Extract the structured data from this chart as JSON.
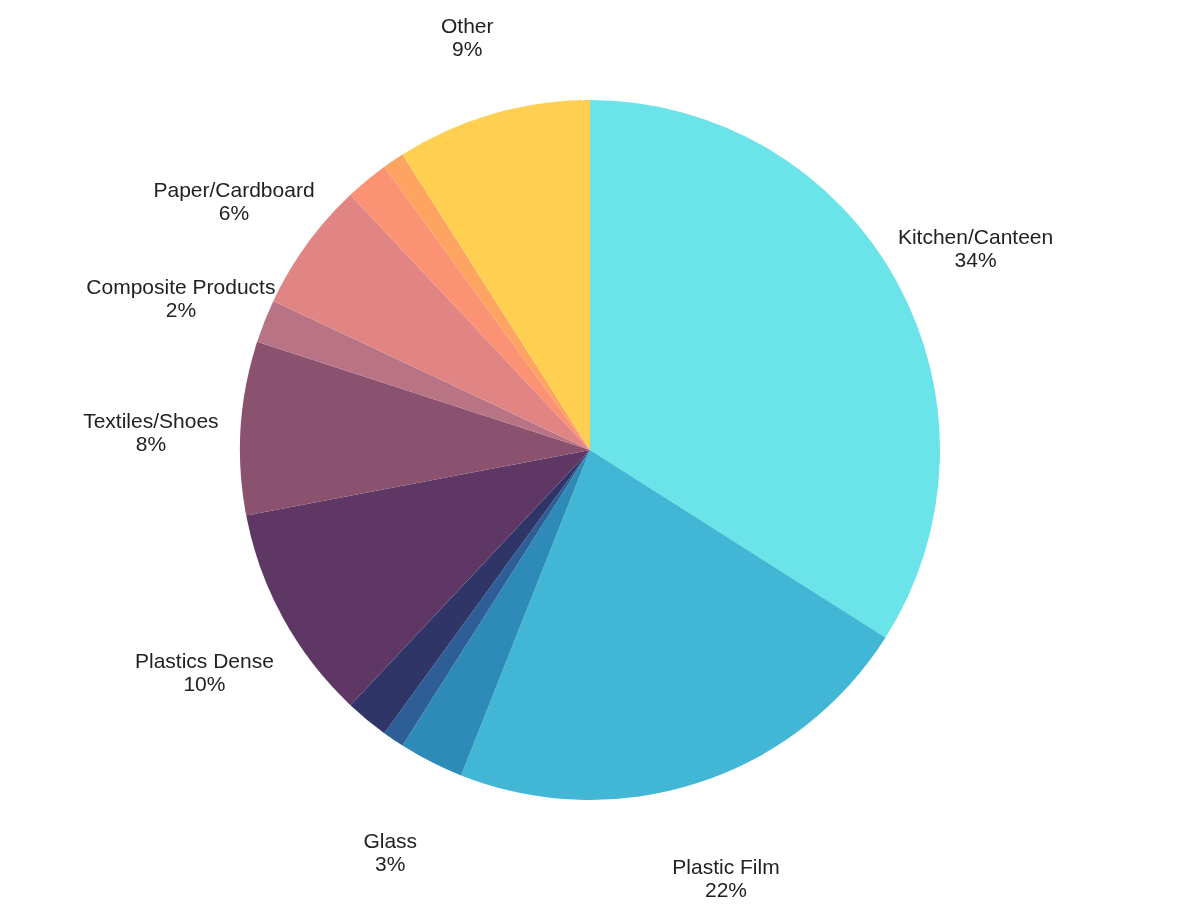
{
  "chart_data": {
    "type": "pie",
    "categories": [
      "Kitchen/Canteen",
      "Plastic Film",
      "Glass",
      null,
      null,
      "Plastics Dense",
      "Textiles/Shoes",
      "Composite Products",
      "Paper/Cardboard",
      null,
      null,
      "Other"
    ],
    "values": [
      34,
      22,
      3,
      1,
      2,
      10,
      8,
      2,
      6,
      2,
      1,
      9
    ],
    "value_labels": [
      "34%",
      "22%",
      "3%",
      null,
      null,
      "10%",
      "8%",
      "2%",
      "6%",
      null,
      null,
      "9%"
    ],
    "colors": [
      "#6ae4e8",
      "#42b6d5",
      "#2e8bb8",
      "#2d5e96",
      "#2f3566",
      "#5e3765",
      "#8a526f",
      "#b87485",
      "#e08484",
      "#fb9274",
      "#fda463",
      "#fecf50"
    ]
  }
}
